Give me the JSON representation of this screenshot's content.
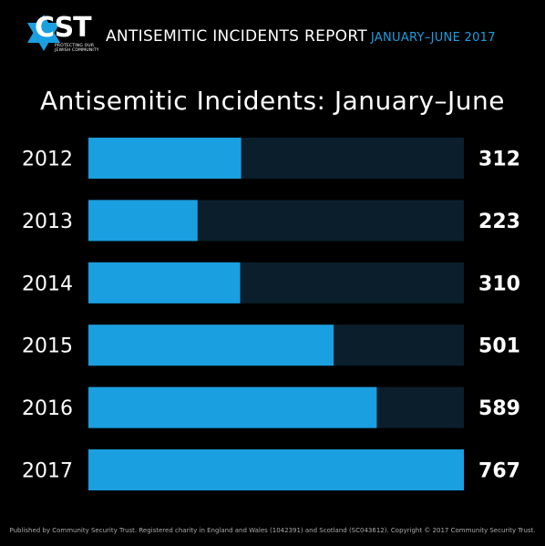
{
  "header": {
    "logo_text": "CST",
    "logo_subtext": "PROTECTING OUR JEWISH COMMUNITY",
    "report_title": "ANTISEMITIC INCIDENTS REPORT",
    "report_period": "JANUARY–JUNE 2017"
  },
  "colors": {
    "background": "#000000",
    "bar_fill": "#1a9fe0",
    "bar_track": "#0b1e2c",
    "text": "#ffffff"
  },
  "chart_data": {
    "type": "bar",
    "orientation": "horizontal",
    "title": "Antisemitic Incidents: January–June",
    "categories": [
      "2012",
      "2013",
      "2014",
      "2015",
      "2016",
      "2017"
    ],
    "values": [
      312,
      223,
      310,
      501,
      589,
      767
    ],
    "xlim": [
      0,
      767
    ],
    "grid": false,
    "legend": "none"
  },
  "footer": {
    "text": "Published by Community Security Trust. Registered charity in England and Wales (1042391) and Scotland (SC043612). Copyright © 2017 Community Security Trust."
  }
}
